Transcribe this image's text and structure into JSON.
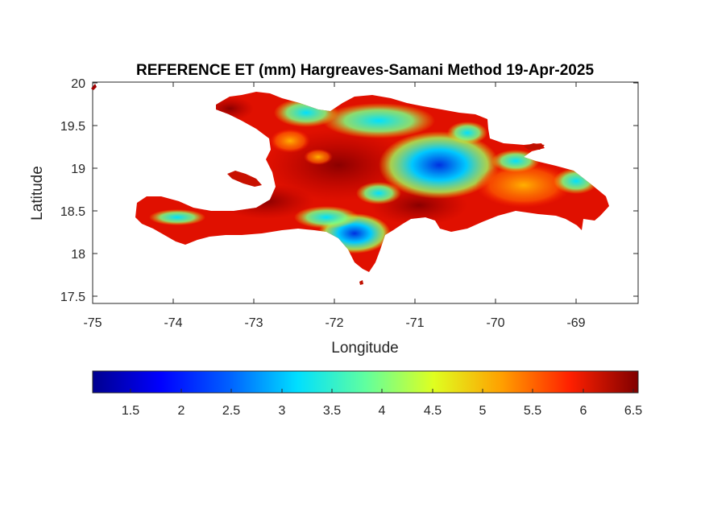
{
  "title": "REFERENCE ET (mm) Hargreaves-Samani Method  19-Apr-2025",
  "map": {
    "x_label": "Longitude",
    "y_label": "Latitude",
    "x_ticks": [
      "-75",
      "-74",
      "-73",
      "-72",
      "-71",
      "-70",
      "-69"
    ],
    "y_ticks": [
      "20",
      "19.5",
      "19",
      "18.5",
      "18",
      "17.5"
    ],
    "x_range": [
      -75,
      -68.2
    ],
    "y_range": [
      17.4,
      20.0
    ],
    "region": "Hispaniola (Haiti and Dominican Republic)",
    "colormap": "jet"
  },
  "colorbar": {
    "ticks": [
      "1.5",
      "2",
      "2.5",
      "3",
      "3.5",
      "4",
      "4.5",
      "5",
      "5.5",
      "6",
      "6.5"
    ],
    "range": [
      1.1,
      6.5
    ],
    "colors": [
      "#00008f",
      "#0000ff",
      "#0080ff",
      "#00ffff",
      "#80ff80",
      "#ffff00",
      "#ff8000",
      "#ff0000",
      "#800000"
    ]
  }
}
